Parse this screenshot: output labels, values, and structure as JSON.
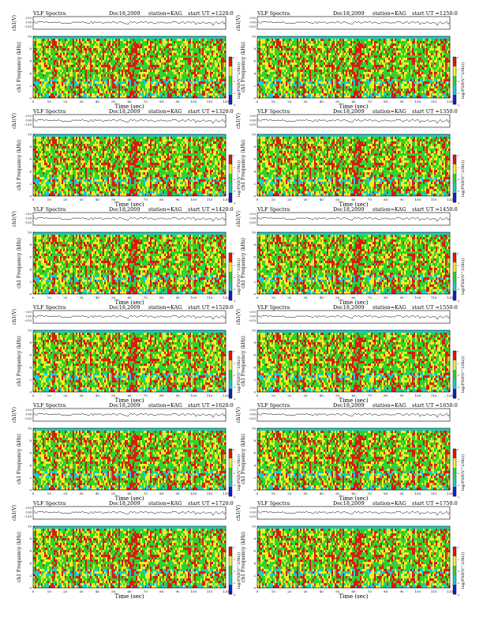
{
  "page": {
    "common": {
      "title": "VLF Spectra",
      "date": "Dec18,2009",
      "station": "station=KAG",
      "ch_label": "ch1(V)",
      "ylabel": "ch1 Frequency (kHz)",
      "xlabel": "Time (sec)",
      "cbar_label": "log(PSD(V^2/Hz))",
      "cbar_ticks": [
        "0",
        "-1",
        "-2",
        "-3",
        "-4"
      ],
      "time_ticks": [
        "0",
        "10",
        "20",
        "30",
        "40",
        "50",
        "60",
        "70",
        "80",
        "90",
        "100",
        "110",
        "120"
      ],
      "ch_ticks": [
        "0.10",
        "0.00",
        "-0.10"
      ],
      "colors": {
        "red": "#dd1a0f",
        "yellow": "#f1ef1f",
        "green": "#2fd22f",
        "cyan": "#19cccc",
        "blue": "#1420c8"
      }
    }
  },
  "chart_data": [
    {
      "type": "heatmap",
      "start_ut": "start UT =1220:0",
      "x_range": [
        0,
        120
      ],
      "y_range": [
        0,
        10
      ],
      "ylim_ch": [
        -0.1,
        0.1
      ],
      "colorbar_range": [
        -4,
        0
      ]
    },
    {
      "type": "heatmap",
      "start_ut": "start UT =1250:0",
      "x_range": [
        0,
        120
      ],
      "y_range": [
        0,
        10
      ],
      "ylim_ch": [
        -0.1,
        0.1
      ],
      "colorbar_range": [
        -4,
        0
      ]
    },
    {
      "type": "heatmap",
      "start_ut": "start UT =1320:0",
      "x_range": [
        0,
        120
      ],
      "y_range": [
        0,
        10
      ],
      "ylim_ch": [
        -0.1,
        0.1
      ],
      "colorbar_range": [
        -4,
        0
      ]
    },
    {
      "type": "heatmap",
      "start_ut": "start UT =1350:0",
      "x_range": [
        0,
        120
      ],
      "y_range": [
        0,
        10
      ],
      "ylim_ch": [
        -0.1,
        0.1
      ],
      "colorbar_range": [
        -4,
        0
      ]
    },
    {
      "type": "heatmap",
      "start_ut": "start UT =1420:0",
      "x_range": [
        0,
        120
      ],
      "y_range": [
        0,
        10
      ],
      "ylim_ch": [
        -0.1,
        0.1
      ],
      "colorbar_range": [
        -4,
        0
      ]
    },
    {
      "type": "heatmap",
      "start_ut": "start UT =1450:0",
      "x_range": [
        0,
        120
      ],
      "y_range": [
        0,
        10
      ],
      "ylim_ch": [
        -0.1,
        0.1
      ],
      "colorbar_range": [
        -4,
        0
      ]
    },
    {
      "type": "heatmap",
      "start_ut": "start UT =1520:0",
      "x_range": [
        0,
        120
      ],
      "y_range": [
        0,
        10
      ],
      "ylim_ch": [
        -0.1,
        0.1
      ],
      "colorbar_range": [
        -4,
        0
      ]
    },
    {
      "type": "heatmap",
      "start_ut": "start UT =1550:0",
      "x_range": [
        0,
        120
      ],
      "y_range": [
        0,
        10
      ],
      "ylim_ch": [
        -0.1,
        0.1
      ],
      "colorbar_range": [
        -4,
        0
      ]
    },
    {
      "type": "heatmap",
      "start_ut": "start UT =1620:0",
      "x_range": [
        0,
        120
      ],
      "y_range": [
        0,
        10
      ],
      "ylim_ch": [
        -0.1,
        0.1
      ],
      "colorbar_range": [
        -4,
        0
      ]
    },
    {
      "type": "heatmap",
      "start_ut": "start UT =1650:0",
      "x_range": [
        0,
        120
      ],
      "y_range": [
        0,
        10
      ],
      "ylim_ch": [
        -0.1,
        0.1
      ],
      "colorbar_range": [
        -4,
        0
      ]
    },
    {
      "type": "heatmap",
      "start_ut": "start UT =1720:0",
      "x_range": [
        0,
        120
      ],
      "y_range": [
        0,
        10
      ],
      "ylim_ch": [
        -0.1,
        0.1
      ],
      "colorbar_range": [
        -4,
        0
      ]
    },
    {
      "type": "heatmap",
      "start_ut": "start UT =1750:0",
      "x_range": [
        0,
        120
      ],
      "y_range": [
        0,
        10
      ],
      "ylim_ch": [
        -0.1,
        0.1
      ],
      "colorbar_range": [
        -4,
        0
      ]
    }
  ]
}
